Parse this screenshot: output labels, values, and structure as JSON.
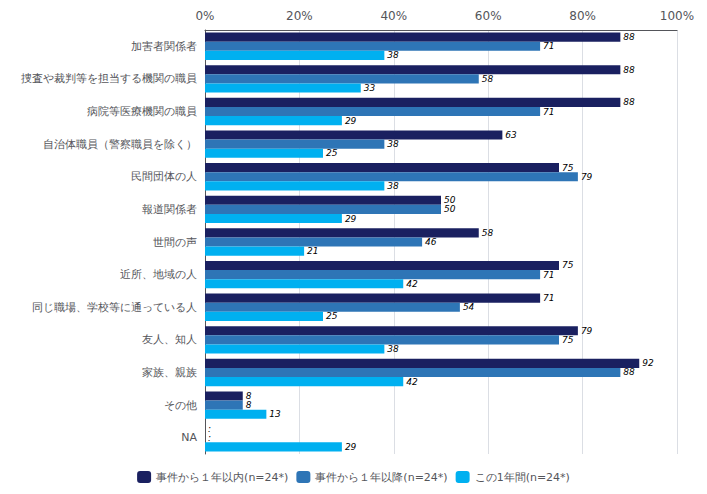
{
  "chart_data": {
    "type": "bar",
    "orientation": "horizontal",
    "categories": [
      "加害者関係者",
      "捜査や裁判等を担当する機関の職員",
      "病院等医療機関の職員",
      "自治体職員（警察職員を除く）",
      "民間団体の人",
      "報道関係者",
      "世間の声",
      "近所、地域の人",
      "同じ職場、学校等に通っている人",
      "友人、知人",
      "家族、親族",
      "その他",
      "NA"
    ],
    "series": [
      {
        "name": "事件から１年以内(n=24*)",
        "color": "#1a2060",
        "values": [
          88,
          88,
          88,
          63,
          75,
          50,
          58,
          75,
          71,
          79,
          92,
          8,
          0
        ],
        "value_labels": [
          "88",
          "88",
          "88",
          "63",
          "75",
          "50",
          "58",
          "75",
          "71",
          "79",
          "92",
          "8",
          ":"
        ]
      },
      {
        "name": "事件から１年以降(n=24*)",
        "color": "#2e75b6",
        "values": [
          71,
          58,
          71,
          38,
          79,
          50,
          46,
          71,
          54,
          75,
          88,
          8,
          0
        ],
        "value_labels": [
          "71",
          "58",
          "71",
          "38",
          "79",
          "50",
          "46",
          "71",
          "54",
          "75",
          "88",
          "8",
          ":"
        ]
      },
      {
        "name": "この1年間(n=24*)",
        "color": "#00b0f0",
        "values": [
          38,
          33,
          29,
          25,
          38,
          29,
          21,
          42,
          25,
          38,
          42,
          13,
          29
        ]
      }
    ],
    "xlim": [
      0,
      100
    ],
    "xticks": [
      {
        "value": 0,
        "label": "0%"
      },
      {
        "value": 20,
        "label": "20%"
      },
      {
        "value": 40,
        "label": "40%"
      },
      {
        "value": 60,
        "label": "60%"
      },
      {
        "value": 80,
        "label": "80%"
      },
      {
        "value": 100,
        "label": "100%"
      }
    ],
    "grid": true,
    "legend": "bottom",
    "data_labels": true
  }
}
